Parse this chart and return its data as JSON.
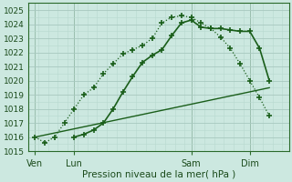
{
  "xlabel": "Pression niveau de la mer( hPa )",
  "ylim": [
    1015,
    1025.5
  ],
  "xlim": [
    0,
    80
  ],
  "yticks": [
    1015,
    1016,
    1017,
    1018,
    1019,
    1020,
    1021,
    1022,
    1023,
    1024,
    1025
  ],
  "bg_color": "#cce8e0",
  "grid_color_minor": "#b8d8cf",
  "grid_color_major": "#a8c8bf",
  "line_color": "#1a5e1a",
  "xtick_labels": [
    "Ven",
    "Lun",
    "Sam",
    "Dim"
  ],
  "xtick_positions": [
    2,
    14,
    50,
    68
  ],
  "line1_x": [
    2,
    5,
    8,
    11,
    14,
    17,
    20,
    23,
    26,
    29,
    32,
    35,
    38,
    41,
    44,
    47,
    50,
    53,
    56,
    59,
    62,
    65,
    68,
    71,
    74
  ],
  "line1_y": [
    1016.0,
    1015.6,
    1016.0,
    1017.0,
    1018.0,
    1019.0,
    1019.5,
    1020.5,
    1021.2,
    1021.9,
    1022.2,
    1022.5,
    1023.0,
    1024.1,
    1024.5,
    1024.6,
    1024.5,
    1024.1,
    1023.7,
    1023.1,
    1022.3,
    1021.2,
    1020.0,
    1018.8,
    1017.5
  ],
  "line2_x": [
    14,
    17,
    20,
    23,
    26,
    29,
    32,
    35,
    38,
    41,
    44,
    47,
    50,
    53,
    56,
    59,
    62,
    65,
    68,
    71,
    74
  ],
  "line2_y": [
    1016.0,
    1016.2,
    1016.5,
    1017.0,
    1018.0,
    1019.2,
    1020.3,
    1021.3,
    1021.8,
    1022.2,
    1023.2,
    1024.1,
    1024.3,
    1023.8,
    1023.7,
    1023.7,
    1023.6,
    1023.5,
    1023.5,
    1022.3,
    1020.0
  ],
  "line3_x": [
    2,
    74
  ],
  "line3_y": [
    1016.0,
    1019.5
  ]
}
